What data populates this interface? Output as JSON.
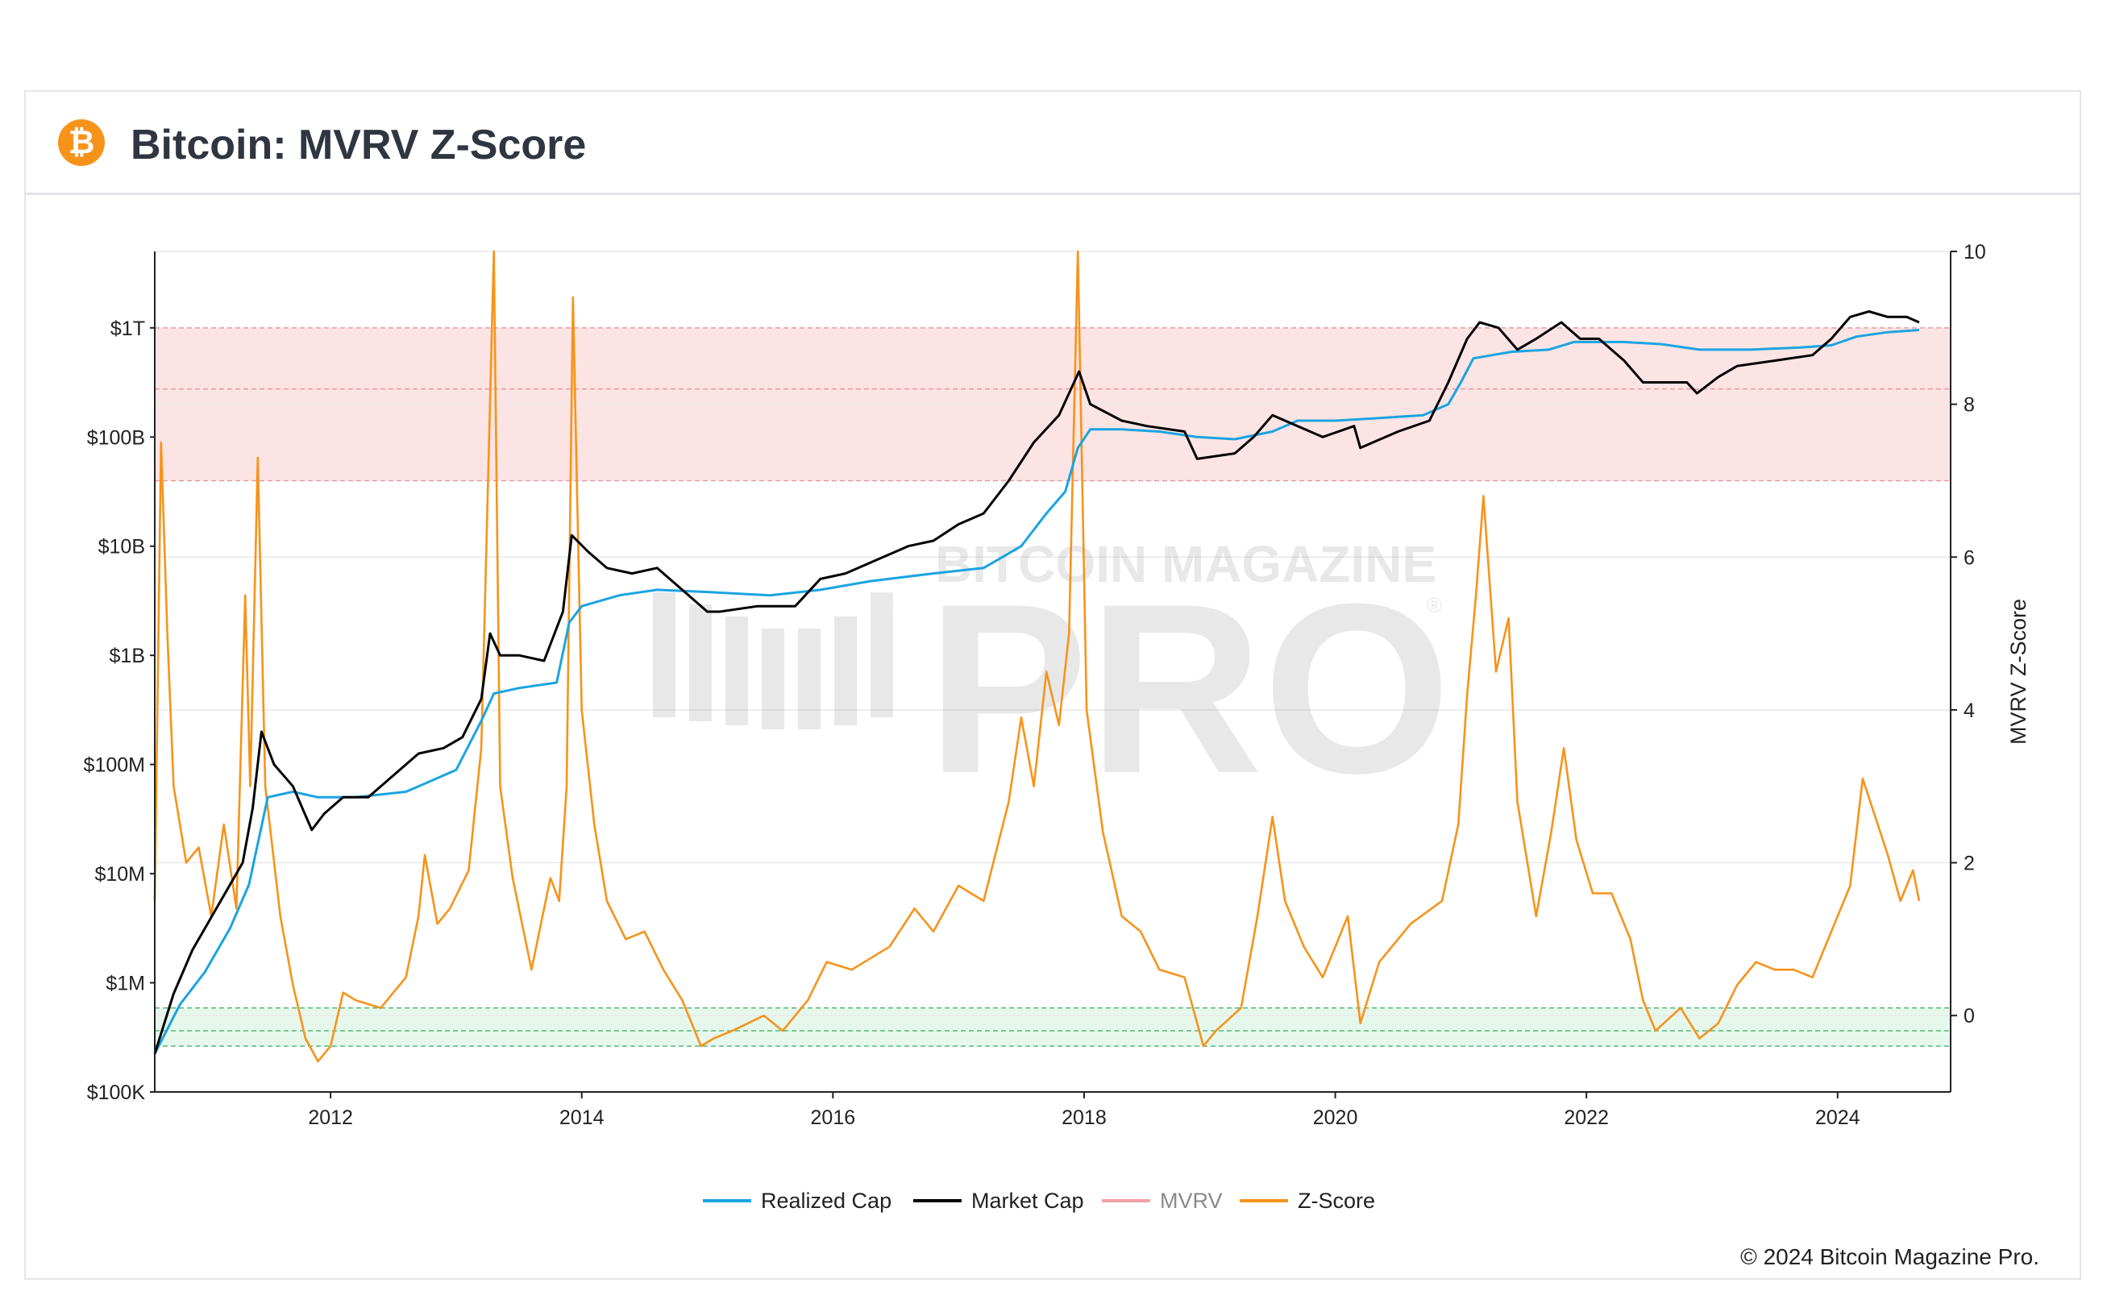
{
  "header": {
    "logo_glyph": "₿",
    "title": "Bitcoin: MVRV Z-Score"
  },
  "footer": {
    "copyright": "© 2024 Bitcoin Magazine Pro."
  },
  "watermark": {
    "line1": "BITCOIN MAGAZINE",
    "line2": "PRO",
    "mark": "®"
  },
  "colors": {
    "realized": "#1aa4e0",
    "market": "#000000",
    "mvrv": "#f4a0a8",
    "zscore": "#f7931a",
    "red_zone": "#fde4e4",
    "green_zone": "#e6f7ec"
  },
  "chart_data": {
    "type": "line",
    "title": "Bitcoin: MVRV Z-Score",
    "x_ticks": [
      "2012",
      "2014",
      "2016",
      "2018",
      "2020",
      "2022",
      "2024"
    ],
    "x_range": [
      2010.6,
      2024.9
    ],
    "y_left": {
      "scale": "log",
      "range_log10": [
        5,
        12.7
      ],
      "ticks": [
        {
          "label": "$1T",
          "log10": 12
        },
        {
          "label": "$100B",
          "log10": 11
        },
        {
          "label": "$10B",
          "log10": 10
        },
        {
          "label": "$1B",
          "log10": 9
        },
        {
          "label": "$100M",
          "log10": 8
        },
        {
          "label": "$10M",
          "log10": 7
        },
        {
          "label": "$1M",
          "log10": 6
        },
        {
          "label": "$100K",
          "log10": 5
        }
      ]
    },
    "y_right": {
      "label": "MVRV Z-Score",
      "range": [
        -1,
        10
      ],
      "ticks": [
        "10",
        "8",
        "6",
        "4",
        "2",
        "0"
      ]
    },
    "zones": {
      "red": {
        "from": 7,
        "to": 9,
        "mid": 8.2
      },
      "green": {
        "from": -0.4,
        "to": 0.1,
        "mid": -0.2
      }
    },
    "legend": [
      {
        "name": "Realized Cap",
        "color": "#1aa4e0",
        "dim": false
      },
      {
        "name": "Market Cap",
        "color": "#000000",
        "dim": false
      },
      {
        "name": "MVRV",
        "color": "#f4a0a8",
        "dim": true
      },
      {
        "name": "Z-Score",
        "color": "#f7931a",
        "dim": false
      }
    ],
    "series": [
      {
        "name": "Market Cap",
        "axis": "left_log10",
        "points": [
          [
            2010.6,
            5.35
          ],
          [
            2010.75,
            5.9
          ],
          [
            2010.9,
            6.3
          ],
          [
            2011.05,
            6.6
          ],
          [
            2011.2,
            6.9
          ],
          [
            2011.3,
            7.1
          ],
          [
            2011.38,
            7.6
          ],
          [
            2011.45,
            8.3
          ],
          [
            2011.55,
            8.0
          ],
          [
            2011.7,
            7.8
          ],
          [
            2011.85,
            7.4
          ],
          [
            2011.95,
            7.55
          ],
          [
            2012.1,
            7.7
          ],
          [
            2012.3,
            7.7
          ],
          [
            2012.5,
            7.9
          ],
          [
            2012.7,
            8.1
          ],
          [
            2012.9,
            8.15
          ],
          [
            2013.05,
            8.25
          ],
          [
            2013.2,
            8.6
          ],
          [
            2013.27,
            9.2
          ],
          [
            2013.35,
            9.0
          ],
          [
            2013.5,
            9.0
          ],
          [
            2013.7,
            8.95
          ],
          [
            2013.85,
            9.4
          ],
          [
            2013.92,
            10.1
          ],
          [
            2014.05,
            9.95
          ],
          [
            2014.2,
            9.8
          ],
          [
            2014.4,
            9.75
          ],
          [
            2014.6,
            9.8
          ],
          [
            2014.8,
            9.6
          ],
          [
            2015.0,
            9.4
          ],
          [
            2015.1,
            9.4
          ],
          [
            2015.4,
            9.45
          ],
          [
            2015.7,
            9.45
          ],
          [
            2015.9,
            9.7
          ],
          [
            2016.1,
            9.75
          ],
          [
            2016.4,
            9.9
          ],
          [
            2016.6,
            10.0
          ],
          [
            2016.8,
            10.05
          ],
          [
            2017.0,
            10.2
          ],
          [
            2017.2,
            10.3
          ],
          [
            2017.4,
            10.6
          ],
          [
            2017.6,
            10.95
          ],
          [
            2017.8,
            11.2
          ],
          [
            2017.96,
            11.6
          ],
          [
            2018.05,
            11.3
          ],
          [
            2018.3,
            11.15
          ],
          [
            2018.5,
            11.1
          ],
          [
            2018.8,
            11.05
          ],
          [
            2018.9,
            10.8
          ],
          [
            2019.2,
            10.85
          ],
          [
            2019.35,
            11.0
          ],
          [
            2019.5,
            11.2
          ],
          [
            2019.7,
            11.1
          ],
          [
            2019.9,
            11.0
          ],
          [
            2020.15,
            11.1
          ],
          [
            2020.2,
            10.9
          ],
          [
            2020.5,
            11.05
          ],
          [
            2020.75,
            11.15
          ],
          [
            2020.9,
            11.5
          ],
          [
            2021.05,
            11.9
          ],
          [
            2021.15,
            12.05
          ],
          [
            2021.3,
            12.0
          ],
          [
            2021.45,
            11.8
          ],
          [
            2021.6,
            11.9
          ],
          [
            2021.8,
            12.05
          ],
          [
            2021.95,
            11.9
          ],
          [
            2022.1,
            11.9
          ],
          [
            2022.3,
            11.7
          ],
          [
            2022.45,
            11.5
          ],
          [
            2022.6,
            11.5
          ],
          [
            2022.8,
            11.5
          ],
          [
            2022.88,
            11.4
          ],
          [
            2023.05,
            11.55
          ],
          [
            2023.2,
            11.65
          ],
          [
            2023.5,
            11.7
          ],
          [
            2023.8,
            11.75
          ],
          [
            2023.95,
            11.9
          ],
          [
            2024.1,
            12.1
          ],
          [
            2024.25,
            12.15
          ],
          [
            2024.4,
            12.1
          ],
          [
            2024.55,
            12.1
          ],
          [
            2024.65,
            12.05
          ]
        ]
      },
      {
        "name": "Realized Cap",
        "axis": "left_log10",
        "points": [
          [
            2010.6,
            5.35
          ],
          [
            2010.8,
            5.8
          ],
          [
            2011.0,
            6.1
          ],
          [
            2011.2,
            6.5
          ],
          [
            2011.35,
            6.9
          ],
          [
            2011.5,
            7.7
          ],
          [
            2011.7,
            7.75
          ],
          [
            2011.9,
            7.7
          ],
          [
            2012.2,
            7.7
          ],
          [
            2012.6,
            7.75
          ],
          [
            2012.8,
            7.85
          ],
          [
            2013.0,
            7.95
          ],
          [
            2013.2,
            8.4
          ],
          [
            2013.3,
            8.65
          ],
          [
            2013.5,
            8.7
          ],
          [
            2013.8,
            8.75
          ],
          [
            2013.9,
            9.3
          ],
          [
            2014.0,
            9.45
          ],
          [
            2014.3,
            9.55
          ],
          [
            2014.6,
            9.6
          ],
          [
            2015.0,
            9.58
          ],
          [
            2015.5,
            9.55
          ],
          [
            2015.9,
            9.6
          ],
          [
            2016.3,
            9.68
          ],
          [
            2016.8,
            9.75
          ],
          [
            2017.2,
            9.8
          ],
          [
            2017.5,
            10.0
          ],
          [
            2017.7,
            10.3
          ],
          [
            2017.85,
            10.5
          ],
          [
            2017.95,
            10.9
          ],
          [
            2018.05,
            11.07
          ],
          [
            2018.3,
            11.07
          ],
          [
            2018.6,
            11.05
          ],
          [
            2018.9,
            11.0
          ],
          [
            2019.2,
            10.98
          ],
          [
            2019.5,
            11.05
          ],
          [
            2019.7,
            11.15
          ],
          [
            2020.0,
            11.15
          ],
          [
            2020.3,
            11.17
          ],
          [
            2020.7,
            11.2
          ],
          [
            2020.9,
            11.3
          ],
          [
            2021.0,
            11.5
          ],
          [
            2021.1,
            11.72
          ],
          [
            2021.4,
            11.78
          ],
          [
            2021.7,
            11.8
          ],
          [
            2021.9,
            11.87
          ],
          [
            2022.3,
            11.87
          ],
          [
            2022.6,
            11.85
          ],
          [
            2022.9,
            11.8
          ],
          [
            2023.3,
            11.8
          ],
          [
            2023.7,
            11.82
          ],
          [
            2023.95,
            11.84
          ],
          [
            2024.15,
            11.92
          ],
          [
            2024.4,
            11.96
          ],
          [
            2024.65,
            11.98
          ]
        ]
      },
      {
        "name": "Z-Score",
        "axis": "right",
        "points": [
          [
            2010.6,
            1.5
          ],
          [
            2010.65,
            7.5
          ],
          [
            2010.7,
            5
          ],
          [
            2010.75,
            3
          ],
          [
            2010.85,
            2
          ],
          [
            2010.95,
            2.2
          ],
          [
            2011.05,
            1.3
          ],
          [
            2011.15,
            2.5
          ],
          [
            2011.25,
            1.4
          ],
          [
            2011.32,
            5.5
          ],
          [
            2011.36,
            3
          ],
          [
            2011.42,
            7.3
          ],
          [
            2011.48,
            3
          ],
          [
            2011.6,
            1.3
          ],
          [
            2011.7,
            0.4
          ],
          [
            2011.8,
            -0.3
          ],
          [
            2011.9,
            -0.6
          ],
          [
            2012.0,
            -0.4
          ],
          [
            2012.1,
            0.3
          ],
          [
            2012.2,
            0.2
          ],
          [
            2012.4,
            0.1
          ],
          [
            2012.6,
            0.5
          ],
          [
            2012.7,
            1.3
          ],
          [
            2012.75,
            2.1
          ],
          [
            2012.85,
            1.2
          ],
          [
            2012.95,
            1.4
          ],
          [
            2013.1,
            1.9
          ],
          [
            2013.2,
            3.5
          ],
          [
            2013.3,
            10
          ],
          [
            2013.35,
            3
          ],
          [
            2013.45,
            1.8
          ],
          [
            2013.6,
            0.6
          ],
          [
            2013.75,
            1.8
          ],
          [
            2013.82,
            1.5
          ],
          [
            2013.88,
            3
          ],
          [
            2013.93,
            9.4
          ],
          [
            2014.0,
            4
          ],
          [
            2014.1,
            2.5
          ],
          [
            2014.2,
            1.5
          ],
          [
            2014.35,
            1.0
          ],
          [
            2014.5,
            1.1
          ],
          [
            2014.65,
            0.6
          ],
          [
            2014.8,
            0.2
          ],
          [
            2014.95,
            -0.4
          ],
          [
            2015.05,
            -0.3
          ],
          [
            2015.2,
            -0.2
          ],
          [
            2015.45,
            0
          ],
          [
            2015.6,
            -0.2
          ],
          [
            2015.8,
            0.2
          ],
          [
            2015.95,
            0.7
          ],
          [
            2016.15,
            0.6
          ],
          [
            2016.45,
            0.9
          ],
          [
            2016.65,
            1.4
          ],
          [
            2016.8,
            1.1
          ],
          [
            2017.0,
            1.7
          ],
          [
            2017.2,
            1.5
          ],
          [
            2017.4,
            2.8
          ],
          [
            2017.5,
            3.9
          ],
          [
            2017.6,
            3.0
          ],
          [
            2017.7,
            4.5
          ],
          [
            2017.8,
            3.8
          ],
          [
            2017.88,
            5
          ],
          [
            2017.95,
            10
          ],
          [
            2018.02,
            4
          ],
          [
            2018.15,
            2.4
          ],
          [
            2018.3,
            1.3
          ],
          [
            2018.45,
            1.1
          ],
          [
            2018.6,
            0.6
          ],
          [
            2018.8,
            0.5
          ],
          [
            2018.95,
            -0.4
          ],
          [
            2019.05,
            -0.2
          ],
          [
            2019.25,
            0.1
          ],
          [
            2019.38,
            1.3
          ],
          [
            2019.5,
            2.6
          ],
          [
            2019.6,
            1.5
          ],
          [
            2019.75,
            0.9
          ],
          [
            2019.9,
            0.5
          ],
          [
            2020.1,
            1.3
          ],
          [
            2020.2,
            -0.1
          ],
          [
            2020.35,
            0.7
          ],
          [
            2020.6,
            1.2
          ],
          [
            2020.85,
            1.5
          ],
          [
            2020.98,
            2.5
          ],
          [
            2021.05,
            4.2
          ],
          [
            2021.12,
            5.5
          ],
          [
            2021.18,
            6.8
          ],
          [
            2021.28,
            4.5
          ],
          [
            2021.38,
            5.2
          ],
          [
            2021.45,
            2.8
          ],
          [
            2021.6,
            1.3
          ],
          [
            2021.72,
            2.4
          ],
          [
            2021.82,
            3.5
          ],
          [
            2021.92,
            2.3
          ],
          [
            2022.05,
            1.6
          ],
          [
            2022.2,
            1.6
          ],
          [
            2022.35,
            1.0
          ],
          [
            2022.45,
            0.2
          ],
          [
            2022.55,
            -0.2
          ],
          [
            2022.75,
            0.1
          ],
          [
            2022.9,
            -0.3
          ],
          [
            2023.05,
            -0.1
          ],
          [
            2023.2,
            0.4
          ],
          [
            2023.35,
            0.7
          ],
          [
            2023.5,
            0.6
          ],
          [
            2023.65,
            0.6
          ],
          [
            2023.8,
            0.5
          ],
          [
            2023.95,
            1.1
          ],
          [
            2024.1,
            1.7
          ],
          [
            2024.2,
            3.1
          ],
          [
            2024.3,
            2.6
          ],
          [
            2024.4,
            2.1
          ],
          [
            2024.5,
            1.5
          ],
          [
            2024.6,
            1.9
          ],
          [
            2024.65,
            1.5
          ]
        ]
      }
    ]
  }
}
